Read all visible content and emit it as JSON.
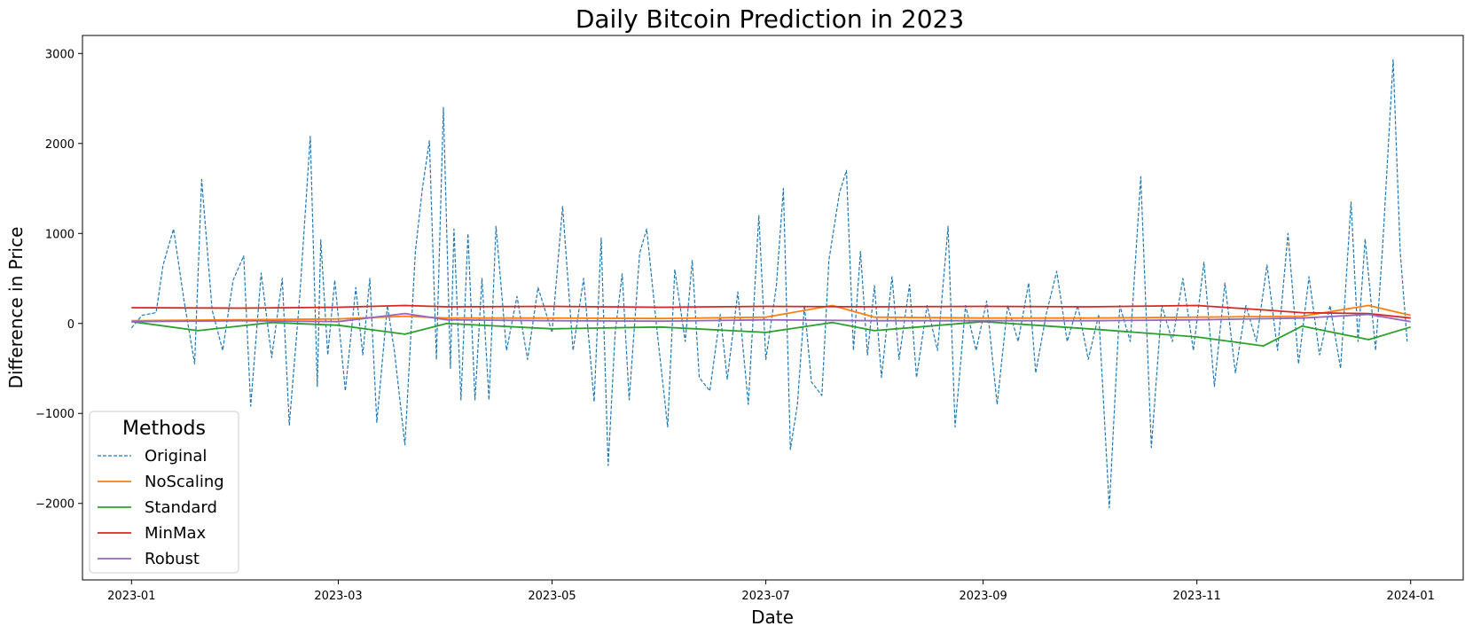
{
  "chart_data": {
    "type": "line",
    "title": "Daily Bitcoin Prediction in 2023",
    "xlabel": "Date",
    "ylabel": "Difference in Price",
    "x_range": [
      "2022-12-18",
      "2024-01-16"
    ],
    "ylim": [
      -2850,
      3200
    ],
    "x_ticks": [
      "2023-01",
      "2023-03",
      "2023-05",
      "2023-07",
      "2023-09",
      "2023-11",
      "2024-01"
    ],
    "y_ticks": [
      -2000,
      -1000,
      0,
      1000,
      2000,
      3000
    ],
    "y_tick_labels": [
      "−2000",
      "−1000",
      "0",
      "1000",
      "2000",
      "3000"
    ],
    "grid": false,
    "legend": {
      "title": "Methods",
      "placement": "lower-left",
      "entries": [
        "Original",
        "NoScaling",
        "Standard",
        "MinMax",
        "Robust"
      ]
    },
    "series": [
      {
        "name": "Original",
        "color": "#1f77b4",
        "style": "dashed",
        "points": [
          [
            "2023-01-01",
            -50
          ],
          [
            "2023-01-04",
            90
          ],
          [
            "2023-01-08",
            120
          ],
          [
            "2023-01-10",
            650
          ],
          [
            "2023-01-13",
            1050
          ],
          [
            "2023-01-16",
            250
          ],
          [
            "2023-01-19",
            -450
          ],
          [
            "2023-01-21",
            1600
          ],
          [
            "2023-01-24",
            150
          ],
          [
            "2023-01-27",
            -300
          ],
          [
            "2023-01-30",
            480
          ],
          [
            "2023-02-02",
            750
          ],
          [
            "2023-02-04",
            -920
          ],
          [
            "2023-02-07",
            560
          ],
          [
            "2023-02-10",
            -380
          ],
          [
            "2023-02-13",
            500
          ],
          [
            "2023-02-15",
            -1130
          ],
          [
            "2023-02-18",
            300
          ],
          [
            "2023-02-21",
            2080
          ],
          [
            "2023-02-23",
            -700
          ],
          [
            "2023-02-24",
            930
          ],
          [
            "2023-02-26",
            -350
          ],
          [
            "2023-02-28",
            480
          ],
          [
            "2023-03-03",
            -750
          ],
          [
            "2023-03-06",
            400
          ],
          [
            "2023-03-08",
            -350
          ],
          [
            "2023-03-10",
            500
          ],
          [
            "2023-03-12",
            -1100
          ],
          [
            "2023-03-15",
            200
          ],
          [
            "2023-03-17",
            -300
          ],
          [
            "2023-03-20",
            -1350
          ],
          [
            "2023-03-23",
            800
          ],
          [
            "2023-03-25",
            1500
          ],
          [
            "2023-03-27",
            2030
          ],
          [
            "2023-03-29",
            -400
          ],
          [
            "2023-03-31",
            2400
          ],
          [
            "2023-04-02",
            -500
          ],
          [
            "2023-04-03",
            1050
          ],
          [
            "2023-04-05",
            -850
          ],
          [
            "2023-04-07",
            1000
          ],
          [
            "2023-04-09",
            -850
          ],
          [
            "2023-04-11",
            500
          ],
          [
            "2023-04-13",
            -850
          ],
          [
            "2023-04-15",
            1080
          ],
          [
            "2023-04-18",
            -300
          ],
          [
            "2023-04-21",
            300
          ],
          [
            "2023-04-24",
            -400
          ],
          [
            "2023-04-27",
            400
          ],
          [
            "2023-05-01",
            -100
          ],
          [
            "2023-05-04",
            1300
          ],
          [
            "2023-05-07",
            -300
          ],
          [
            "2023-05-10",
            500
          ],
          [
            "2023-05-13",
            -870
          ],
          [
            "2023-05-15",
            950
          ],
          [
            "2023-05-17",
            -1580
          ],
          [
            "2023-05-19",
            -100
          ],
          [
            "2023-05-21",
            550
          ],
          [
            "2023-05-23",
            -850
          ],
          [
            "2023-05-26",
            780
          ],
          [
            "2023-05-28",
            1050
          ],
          [
            "2023-05-31",
            -100
          ],
          [
            "2023-06-03",
            -1150
          ],
          [
            "2023-06-05",
            600
          ],
          [
            "2023-06-08",
            -200
          ],
          [
            "2023-06-10",
            700
          ],
          [
            "2023-06-12",
            -600
          ],
          [
            "2023-06-15",
            -750
          ],
          [
            "2023-06-18",
            100
          ],
          [
            "2023-06-20",
            -620
          ],
          [
            "2023-06-23",
            350
          ],
          [
            "2023-06-26",
            -900
          ],
          [
            "2023-06-29",
            1200
          ],
          [
            "2023-07-01",
            -400
          ],
          [
            "2023-07-04",
            420
          ],
          [
            "2023-07-06",
            1500
          ],
          [
            "2023-07-08",
            -1400
          ],
          [
            "2023-07-10",
            -900
          ],
          [
            "2023-07-12",
            200
          ],
          [
            "2023-07-14",
            -650
          ],
          [
            "2023-07-17",
            -800
          ],
          [
            "2023-07-19",
            700
          ],
          [
            "2023-07-22",
            1450
          ],
          [
            "2023-07-24",
            1700
          ],
          [
            "2023-07-26",
            -300
          ],
          [
            "2023-07-28",
            800
          ],
          [
            "2023-07-30",
            -350
          ],
          [
            "2023-08-01",
            420
          ],
          [
            "2023-08-03",
            -600
          ],
          [
            "2023-08-06",
            520
          ],
          [
            "2023-08-08",
            -400
          ],
          [
            "2023-08-11",
            430
          ],
          [
            "2023-08-13",
            -600
          ],
          [
            "2023-08-16",
            200
          ],
          [
            "2023-08-19",
            -300
          ],
          [
            "2023-08-22",
            1080
          ],
          [
            "2023-08-24",
            -1150
          ],
          [
            "2023-08-27",
            200
          ],
          [
            "2023-08-30",
            -300
          ],
          [
            "2023-09-02",
            250
          ],
          [
            "2023-09-05",
            -900
          ],
          [
            "2023-09-08",
            200
          ],
          [
            "2023-09-11",
            -200
          ],
          [
            "2023-09-14",
            450
          ],
          [
            "2023-09-16",
            -550
          ],
          [
            "2023-09-19",
            100
          ],
          [
            "2023-09-22",
            580
          ],
          [
            "2023-09-25",
            -200
          ],
          [
            "2023-09-28",
            200
          ],
          [
            "2023-10-01",
            -400
          ],
          [
            "2023-10-04",
            100
          ],
          [
            "2023-10-07",
            -2050
          ],
          [
            "2023-10-10",
            200
          ],
          [
            "2023-10-13",
            -200
          ],
          [
            "2023-10-16",
            1630
          ],
          [
            "2023-10-19",
            -1380
          ],
          [
            "2023-10-22",
            200
          ],
          [
            "2023-10-25",
            -200
          ],
          [
            "2023-10-28",
            500
          ],
          [
            "2023-10-31",
            -300
          ],
          [
            "2023-11-03",
            680
          ],
          [
            "2023-11-06",
            -700
          ],
          [
            "2023-11-09",
            450
          ],
          [
            "2023-11-12",
            -550
          ],
          [
            "2023-11-15",
            200
          ],
          [
            "2023-11-18",
            -200
          ],
          [
            "2023-11-21",
            650
          ],
          [
            "2023-11-24",
            -300
          ],
          [
            "2023-11-27",
            1000
          ],
          [
            "2023-11-30",
            -450
          ],
          [
            "2023-12-03",
            520
          ],
          [
            "2023-12-06",
            -350
          ],
          [
            "2023-12-09",
            200
          ],
          [
            "2023-12-12",
            -500
          ],
          [
            "2023-12-15",
            1350
          ],
          [
            "2023-12-17",
            -200
          ],
          [
            "2023-12-19",
            940
          ],
          [
            "2023-12-22",
            -300
          ],
          [
            "2023-12-24",
            850
          ],
          [
            "2023-12-27",
            2930
          ],
          [
            "2023-12-29",
            800
          ],
          [
            "2023-12-31",
            -200
          ]
        ]
      },
      {
        "name": "NoScaling",
        "color": "#ff7f0e",
        "style": "solid",
        "points": [
          [
            "2023-01-01",
            30
          ],
          [
            "2023-02-01",
            40
          ],
          [
            "2023-03-01",
            50
          ],
          [
            "2023-03-20",
            80
          ],
          [
            "2023-04-01",
            60
          ],
          [
            "2023-05-01",
            60
          ],
          [
            "2023-06-01",
            55
          ],
          [
            "2023-07-01",
            70
          ],
          [
            "2023-07-20",
            200
          ],
          [
            "2023-08-01",
            70
          ],
          [
            "2023-09-01",
            60
          ],
          [
            "2023-10-01",
            60
          ],
          [
            "2023-11-01",
            70
          ],
          [
            "2023-12-01",
            80
          ],
          [
            "2023-12-20",
            200
          ],
          [
            "2024-01-01",
            90
          ]
        ]
      },
      {
        "name": "Standard",
        "color": "#2ca02c",
        "style": "solid",
        "points": [
          [
            "2023-01-01",
            20
          ],
          [
            "2023-01-20",
            -80
          ],
          [
            "2023-02-10",
            10
          ],
          [
            "2023-03-01",
            -20
          ],
          [
            "2023-03-20",
            -120
          ],
          [
            "2023-04-01",
            0
          ],
          [
            "2023-05-01",
            -60
          ],
          [
            "2023-06-01",
            -40
          ],
          [
            "2023-07-01",
            -100
          ],
          [
            "2023-07-20",
            10
          ],
          [
            "2023-08-01",
            -80
          ],
          [
            "2023-09-01",
            20
          ],
          [
            "2023-10-01",
            -60
          ],
          [
            "2023-11-01",
            -150
          ],
          [
            "2023-11-20",
            -250
          ],
          [
            "2023-12-01",
            -30
          ],
          [
            "2023-12-20",
            -180
          ],
          [
            "2024-01-01",
            -40
          ]
        ]
      },
      {
        "name": "MinMax",
        "color": "#d62728",
        "style": "solid",
        "points": [
          [
            "2023-01-01",
            175
          ],
          [
            "2023-02-01",
            170
          ],
          [
            "2023-03-01",
            180
          ],
          [
            "2023-03-20",
            200
          ],
          [
            "2023-04-01",
            185
          ],
          [
            "2023-05-01",
            190
          ],
          [
            "2023-06-01",
            180
          ],
          [
            "2023-07-01",
            190
          ],
          [
            "2023-08-01",
            185
          ],
          [
            "2023-09-01",
            190
          ],
          [
            "2023-10-01",
            185
          ],
          [
            "2023-11-01",
            200
          ],
          [
            "2023-11-20",
            150
          ],
          [
            "2023-12-01",
            120
          ],
          [
            "2023-12-20",
            110
          ],
          [
            "2024-01-01",
            60
          ]
        ]
      },
      {
        "name": "Robust",
        "color": "#9467bd",
        "style": "solid",
        "points": [
          [
            "2023-01-01",
            20
          ],
          [
            "2023-02-01",
            30
          ],
          [
            "2023-03-01",
            20
          ],
          [
            "2023-03-20",
            110
          ],
          [
            "2023-04-01",
            40
          ],
          [
            "2023-05-01",
            30
          ],
          [
            "2023-06-01",
            25
          ],
          [
            "2023-07-01",
            40
          ],
          [
            "2023-08-01",
            30
          ],
          [
            "2023-09-01",
            30
          ],
          [
            "2023-10-01",
            30
          ],
          [
            "2023-11-01",
            40
          ],
          [
            "2023-12-01",
            60
          ],
          [
            "2023-12-20",
            100
          ],
          [
            "2024-01-01",
            20
          ]
        ]
      }
    ]
  }
}
